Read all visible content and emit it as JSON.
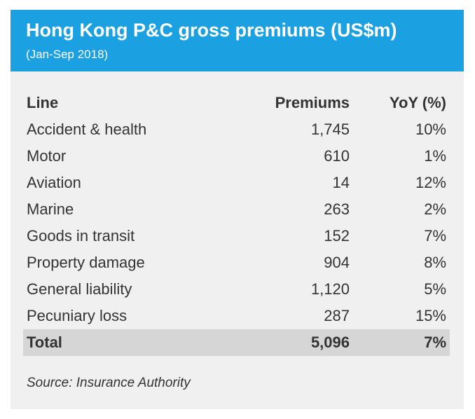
{
  "header": {
    "title": "Hong Kong P&C gross premiums (US$m)",
    "subtitle": "(Jan-Sep 2018)"
  },
  "chart_data": {
    "type": "table",
    "title": "Hong Kong P&C gross premiums (US$m)",
    "subtitle": "(Jan-Sep 2018)",
    "columns": [
      "Line",
      "Premiums",
      "YoY (%)"
    ],
    "rows": [
      {
        "line": "Accident & health",
        "premiums": "1,745",
        "yoy": "10%"
      },
      {
        "line": "Motor",
        "premiums": "610",
        "yoy": "1%"
      },
      {
        "line": "Aviation",
        "premiums": "14",
        "yoy": "12%"
      },
      {
        "line": "Marine",
        "premiums": "263",
        "yoy": "2%"
      },
      {
        "line": "Goods in transit",
        "premiums": "152",
        "yoy": "7%"
      },
      {
        "line": "Property damage",
        "premiums": "904",
        "yoy": "8%"
      },
      {
        "line": "General liability",
        "premiums": "1,120",
        "yoy": "5%"
      },
      {
        "line": "Pecuniary loss",
        "premiums": "287",
        "yoy": "15%"
      }
    ],
    "total": {
      "line": "Total",
      "premiums": "5,096",
      "yoy": "7%"
    },
    "source": "Source: Insurance Authority"
  },
  "colors": {
    "header_bg": "#1ba1e2",
    "card_bg": "#f0f0f0",
    "total_row_bg": "#d6d6d6",
    "text": "#333333"
  }
}
